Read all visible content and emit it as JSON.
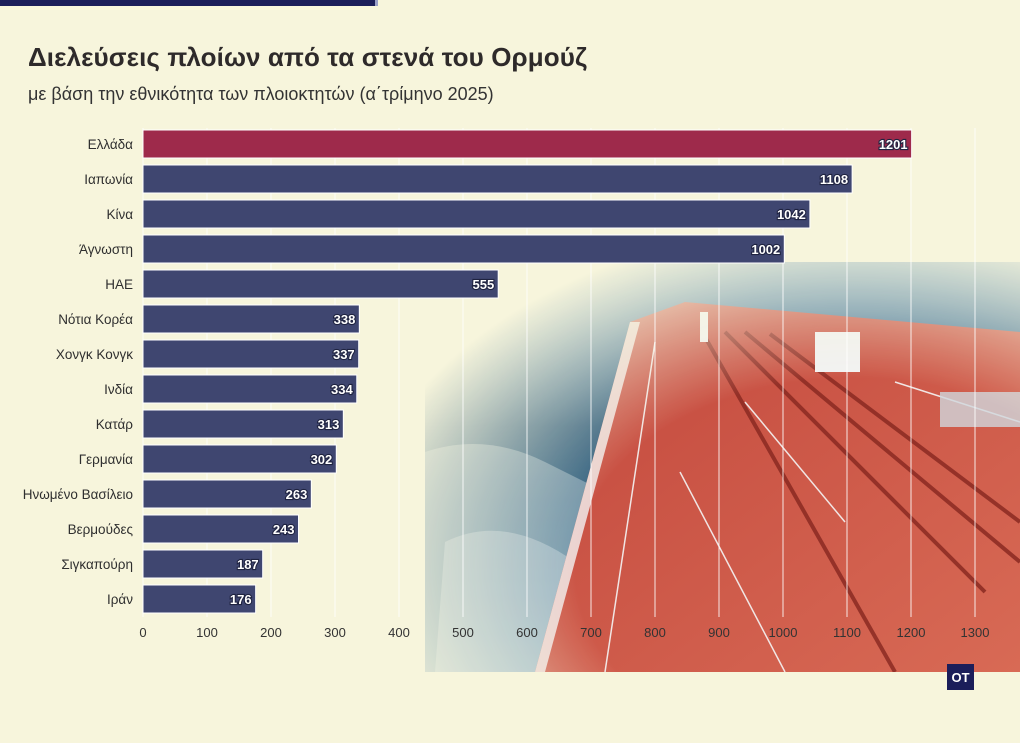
{
  "header": {
    "title": "Διελεύσεις πλοίων από τα στενά του Ορμούζ",
    "subtitle": "με βάση την εθνικότητα των πλοιοκτητών (α΄τρίμηνο 2025)"
  },
  "logo_text": "OT",
  "colors": {
    "highlight": "#9e2a4b",
    "bar": "#3f4670",
    "background": "#f7f5dc"
  },
  "chart_data": {
    "type": "bar",
    "orientation": "horizontal",
    "title": "Διελεύσεις πλοίων από τα στενά του Ορμούζ",
    "subtitle": "με βάση την εθνικότητα των πλοιοκτητών (α΄τρίμηνο 2025)",
    "categories": [
      "Ελλάδα",
      "Ιαπωνία",
      "Κίνα",
      "Άγνωστη",
      "ΗΑΕ",
      "Νότια Κορέα",
      "Χονγκ Κονγκ",
      "Ινδία",
      "Κατάρ",
      "Γερμανία",
      "Ηνωμένο Βασίλειο",
      "Βερμούδες",
      "Σιγκαπούρη",
      "Ιράν"
    ],
    "values": [
      1201,
      1108,
      1042,
      1002,
      555,
      338,
      337,
      334,
      313,
      302,
      263,
      243,
      187,
      176
    ],
    "highlight_index": 0,
    "xlim": [
      0,
      1300
    ],
    "xticks": [
      0,
      100,
      200,
      300,
      400,
      500,
      600,
      700,
      800,
      900,
      1000,
      1100,
      1200,
      1300
    ],
    "grid": true,
    "legend": "none",
    "data_labels": true
  }
}
